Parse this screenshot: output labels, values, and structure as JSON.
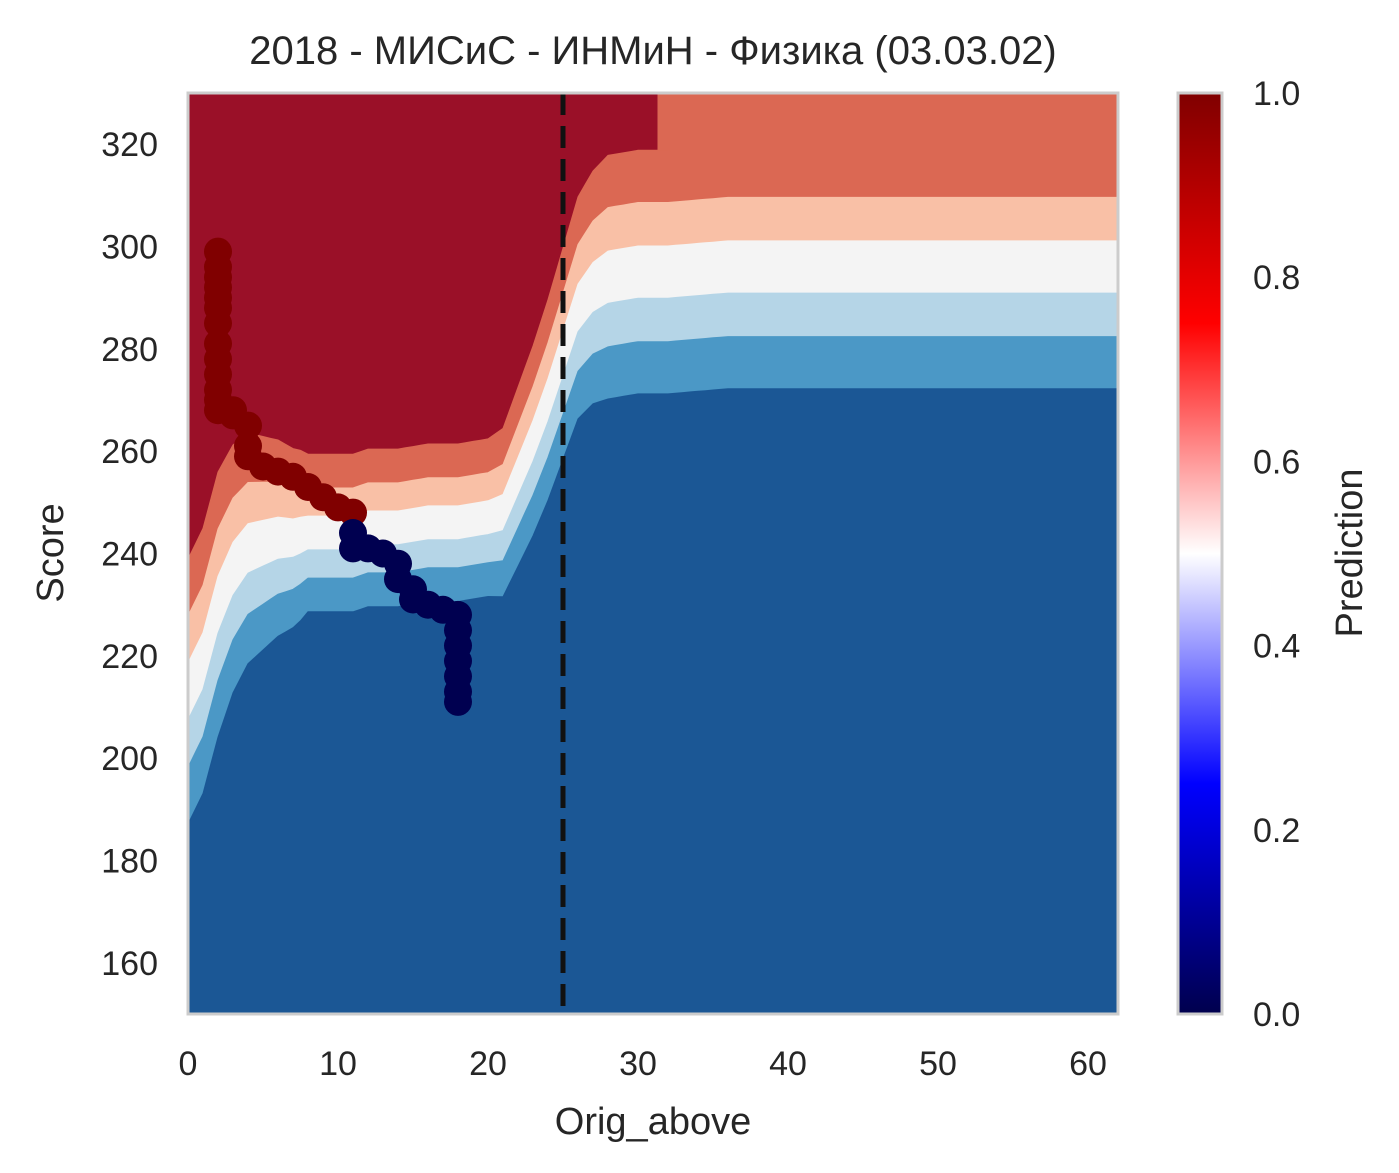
{
  "chart_data": {
    "type": "heatmap",
    "title": "2018 - МИСиС - ИНМиН - Физика (03.03.02)",
    "xlabel": "Orig_above",
    "ylabel": "Score",
    "xlim": [
      0,
      62
    ],
    "ylim": [
      150,
      330
    ],
    "x_ticks": [
      0,
      10,
      20,
      30,
      40,
      50,
      60
    ],
    "y_ticks": [
      160,
      180,
      200,
      220,
      240,
      260,
      280,
      300,
      320
    ],
    "grid": false,
    "colorbar": {
      "label": "Prediction",
      "range": [
        0.0,
        1.0
      ],
      "ticks": [
        "0.0",
        "0.2",
        "0.4",
        "0.6",
        "0.8",
        "1.0"
      ],
      "colormap": "seismic"
    },
    "contour_levels": [
      {
        "level": "0.0-0.1",
        "color": "#1b5795"
      },
      {
        "level": "0.1-0.2",
        "color": "#4b98c6"
      },
      {
        "level": "0.2-0.4",
        "color": "#b5d5e7"
      },
      {
        "level": "0.4-0.6",
        "color": "#f4f4f4"
      },
      {
        "level": "0.6-0.7",
        "color": "#f9c0a6"
      },
      {
        "level": "0.7-0.9",
        "color": "#db6853"
      },
      {
        "level": "0.9-1.0",
        "color": "#9a1028"
      }
    ],
    "boundary_samples": {
      "x": [
        0,
        1,
        2,
        3,
        4,
        5,
        6,
        7,
        8,
        9,
        10,
        11,
        12,
        14,
        16,
        18,
        20,
        21,
        22,
        23,
        24,
        25,
        26,
        27,
        28,
        30,
        32,
        36,
        40,
        50,
        62
      ],
      "y_pred_0_5": [
        213,
        219,
        230,
        237,
        241,
        242,
        243,
        243,
        244,
        244,
        244,
        244,
        245,
        245,
        246,
        246,
        247,
        248,
        255,
        262,
        270,
        279,
        288,
        292,
        294,
        295,
        295,
        296,
        296,
        296,
        296
      ]
    },
    "vertical_line": {
      "x": 25,
      "style": "dashed",
      "color": "#111111"
    },
    "series": [
      {
        "name": "",
        "color": "#800000",
        "x": [
          2,
          2,
          2,
          2,
          2,
          2,
          2,
          2,
          2,
          2,
          2,
          2,
          2,
          3,
          3,
          4,
          4,
          4,
          5,
          6,
          7,
          8,
          9,
          10,
          11
        ],
        "y": [
          299,
          296,
          294,
          292,
          290,
          288,
          285,
          281,
          278,
          275,
          272,
          270,
          268,
          268,
          267,
          265,
          261,
          259,
          257,
          256,
          255,
          253,
          251,
          249,
          248
        ]
      },
      {
        "name": "",
        "color": "#000050",
        "x": [
          11,
          11,
          12,
          13,
          14,
          14,
          15,
          15,
          16,
          17,
          18,
          18,
          18,
          18,
          18,
          18,
          18
        ],
        "y": [
          244,
          241,
          241,
          240,
          238,
          235,
          233,
          231,
          230,
          229,
          228,
          225,
          222,
          219,
          216,
          213,
          211
        ]
      }
    ]
  }
}
